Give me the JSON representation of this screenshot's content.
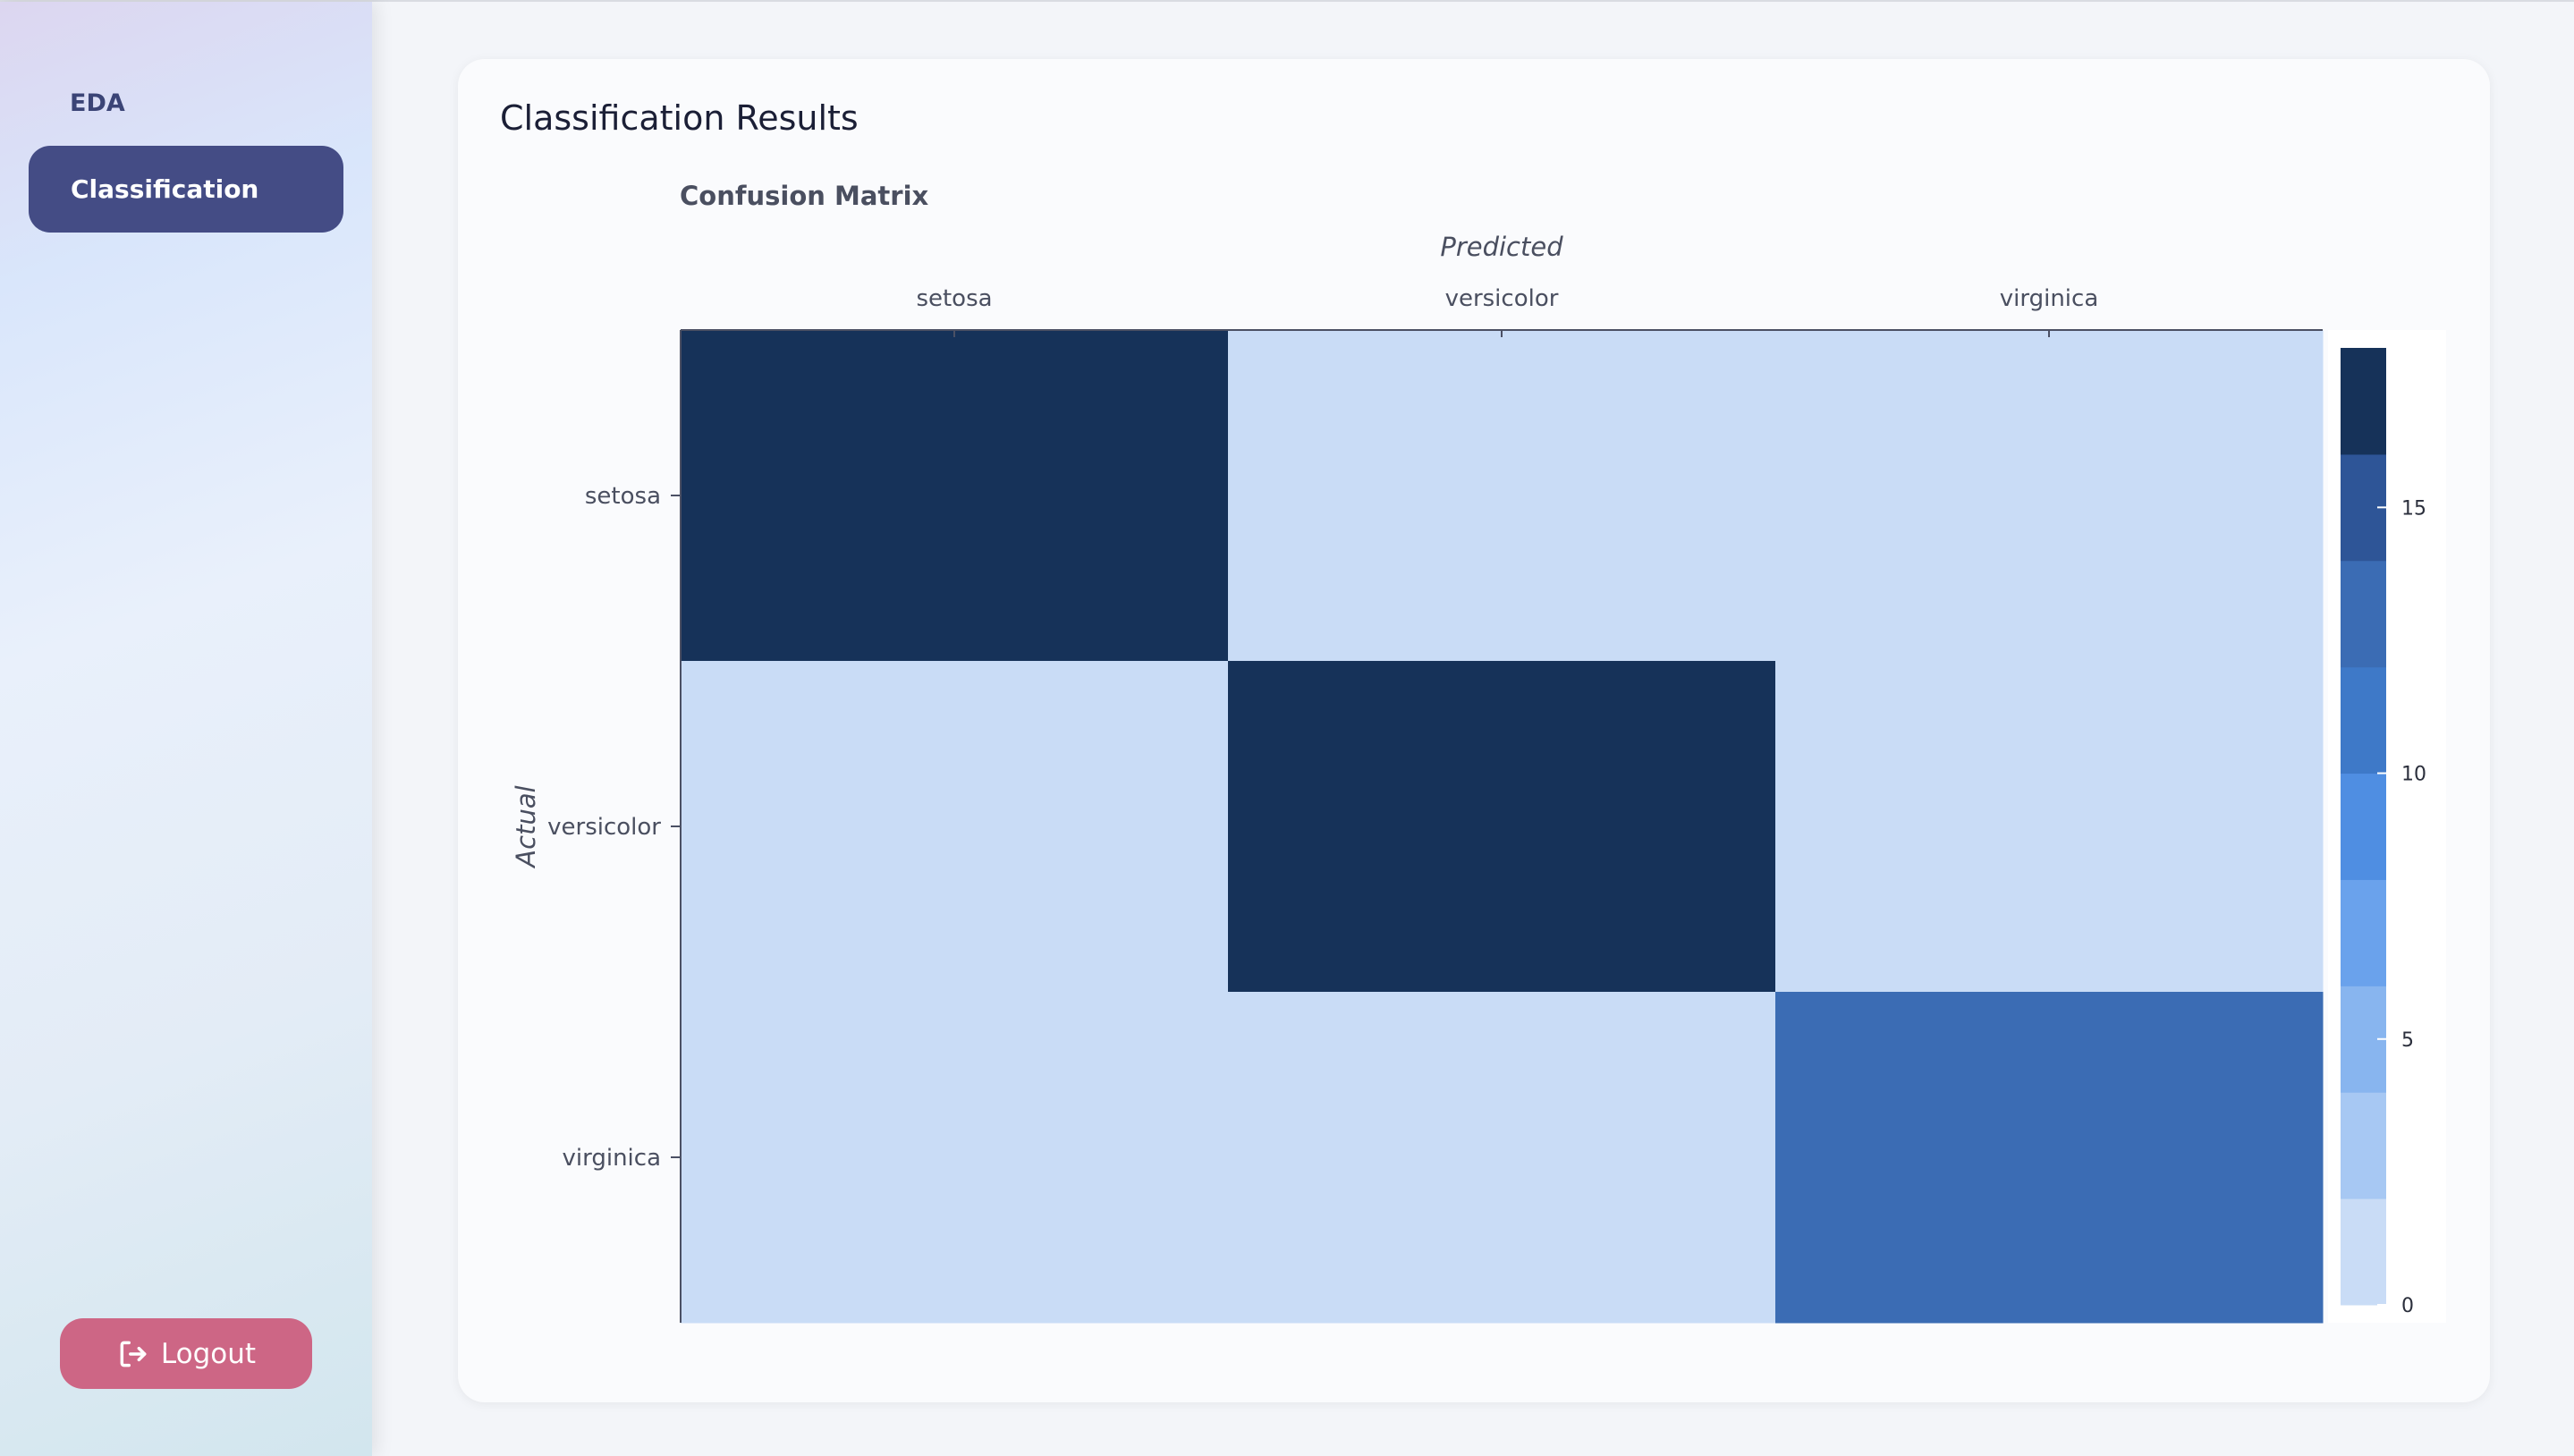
{
  "sidebar": {
    "items": [
      {
        "label": "EDA",
        "active": false
      },
      {
        "label": "Classification",
        "active": true
      }
    ],
    "logout_label": "Logout"
  },
  "main": {
    "title": "Classification Results"
  },
  "colors": {
    "sidebar_active": "#444c85",
    "logout": "#cd6685",
    "scale": [
      "#c9dcf6",
      "#a7c8f3",
      "#88b5ef",
      "#6aa2ec",
      "#4f8ee2",
      "#3e79c8",
      "#3b6cb4",
      "#2e5597",
      "#163259"
    ]
  },
  "chart_data": {
    "type": "heatmap",
    "title": "Confusion Matrix",
    "xlabel": "Predicted",
    "ylabel": "Actual",
    "x": [
      "setosa",
      "versicolor",
      "virginica"
    ],
    "y": [
      "setosa",
      "versicolor",
      "virginica"
    ],
    "z": [
      [
        18,
        0,
        0
      ],
      [
        0,
        18,
        0
      ],
      [
        0,
        0,
        13
      ]
    ],
    "zmin": 0,
    "zmax": 18,
    "colorbar": {
      "ticks": [
        0,
        5,
        10,
        15
      ]
    },
    "x_axis_position": "top",
    "grid": false
  }
}
